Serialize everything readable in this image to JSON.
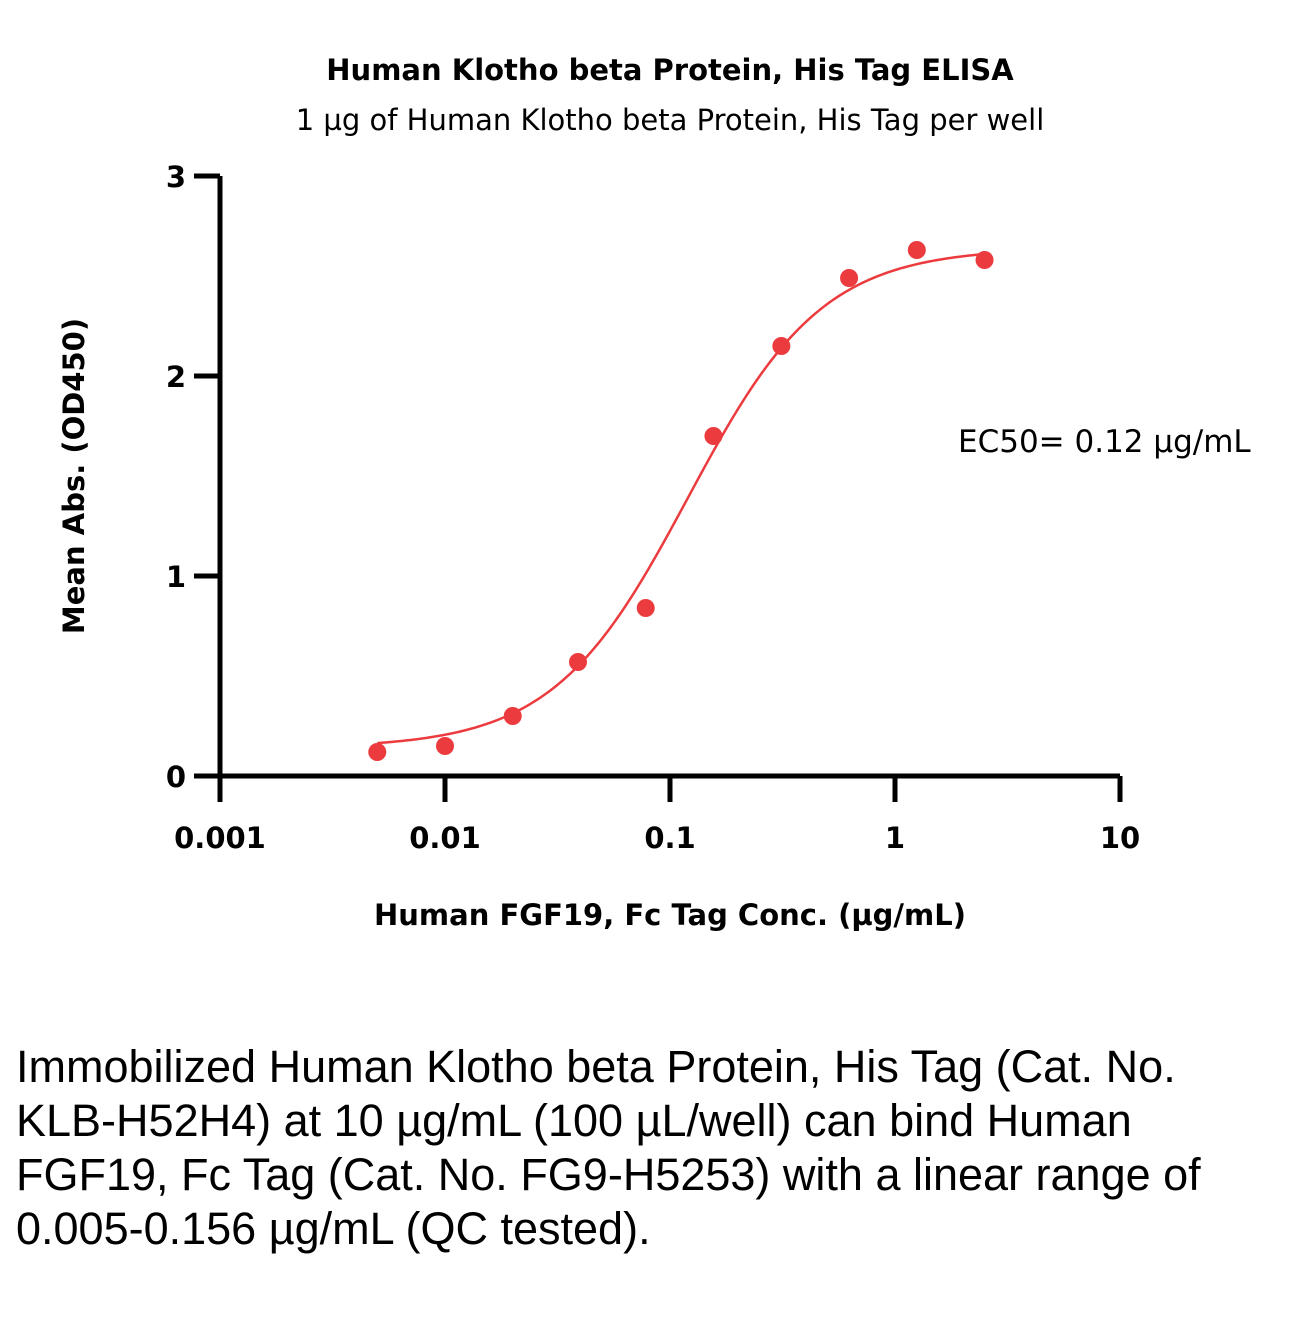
{
  "chart_data": {
    "type": "scatter",
    "title": "Human Klotho beta Protein, His Tag ELISA",
    "subtitle": "1 µg of Human Klotho beta Protein, His Tag per well",
    "xlabel": "Human FGF19, Fc Tag Conc. (µg/mL)",
    "ylabel": "Mean Abs. (OD450)",
    "xscale": "log",
    "xlim": [
      0.001,
      10
    ],
    "ylim": [
      0,
      3
    ],
    "x_ticks": [
      0.001,
      0.01,
      0.1,
      1,
      10
    ],
    "x_tick_labels": [
      "0.001",
      "0.01",
      "0.1",
      "1",
      "10"
    ],
    "y_ticks": [
      0,
      1,
      2,
      3
    ],
    "y_tick_labels": [
      "0",
      "1",
      "2",
      "3"
    ],
    "grid": false,
    "series": [
      {
        "color": "#ec3b3f",
        "x": [
          0.005,
          0.01,
          0.02,
          0.039,
          0.078,
          0.156,
          0.3125,
          0.625,
          1.25,
          2.5
        ],
        "y": [
          0.12,
          0.15,
          0.3,
          0.57,
          0.84,
          1.7,
          2.15,
          2.49,
          2.63,
          2.58
        ]
      }
    ],
    "fit_curve": {
      "model": "4PL",
      "color": "#ec3b3f",
      "bottom": 0.14,
      "top": 2.64,
      "ec50": 0.12,
      "hill": 1.45
    },
    "annotation": "EC50= 0.12 µg/mL"
  },
  "caption": "Immobilized Human Klotho beta Protein, His Tag (Cat. No. KLB-H52H4) at 10 µg/mL (100 µL/well) can bind Human FGF19, Fc Tag (Cat. No. FG9-H5253) with a linear range of 0.005-0.156 µg/mL (QC tested)."
}
